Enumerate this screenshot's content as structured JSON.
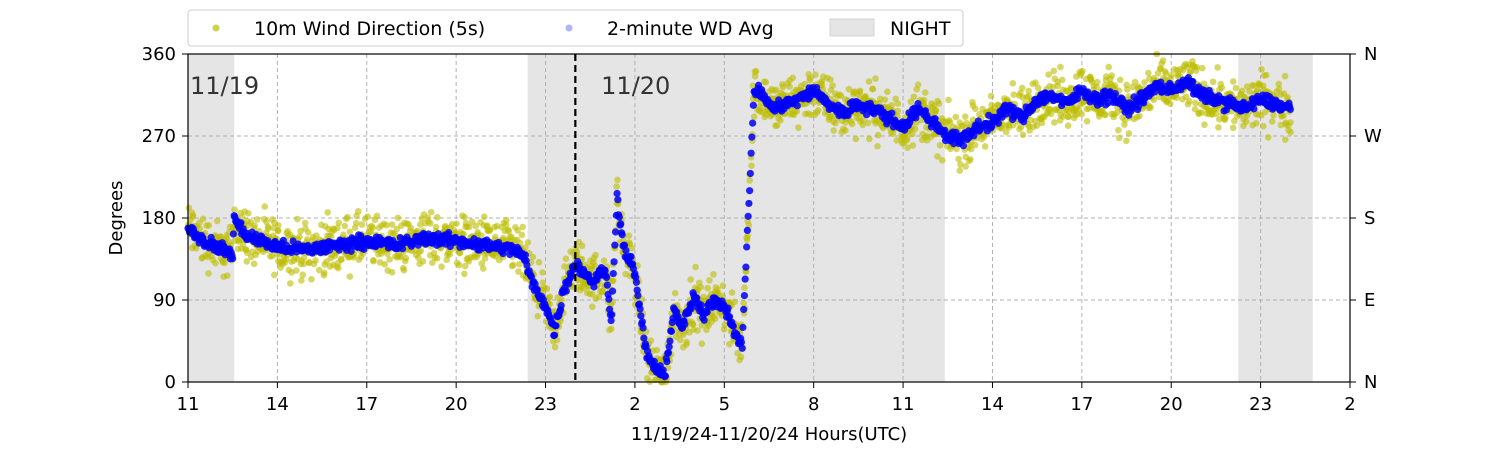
{
  "chart_data": {
    "type": "scatter",
    "title": "",
    "xlabel": "11/19/24-11/20/24  Hours(UTC)",
    "ylabel": "Degrees",
    "xlim": [
      0,
      39
    ],
    "ylim": [
      0,
      360
    ],
    "x_unit": "hours since 11/19/24 11:00 UTC",
    "x_tick_labels": [
      "11",
      "14",
      "17",
      "20",
      "23",
      "2",
      "5",
      "8",
      "11",
      "14",
      "17",
      "20",
      "23",
      "2"
    ],
    "x_ticks": [
      0,
      3,
      6,
      9,
      12,
      15,
      18,
      21,
      24,
      27,
      30,
      33,
      36,
      39
    ],
    "y_ticks": [
      0,
      90,
      180,
      270,
      360
    ],
    "y_tick_labels": [
      "0",
      "90",
      "180",
      "270",
      "360"
    ],
    "y2_ticks": [
      0,
      90,
      180,
      270,
      360
    ],
    "y2_tick_labels": [
      "N",
      "E",
      "S",
      "W",
      "N"
    ],
    "grid": true,
    "legend_placement": "top-left outside",
    "day_labels": [
      {
        "text": "11/19",
        "x": 0
      },
      {
        "text": "11/20",
        "x": 13.8
      }
    ],
    "midnight_line_x": 13,
    "night_periods": [
      [
        0,
        1.55
      ],
      [
        11.4,
        25.4
      ],
      [
        35.25,
        37.75
      ]
    ],
    "legend": {
      "wd5s": "10m Wind Direction (5s)",
      "wd2m": "2-minute WD Avg",
      "night": "NIGHT"
    },
    "colors": {
      "wd5s": "#bdbd00",
      "wd2m": "#0000ff",
      "night": "#e5e5e5",
      "midnight": "#000000",
      "grid": "#b0b0b0"
    },
    "series": [
      {
        "name": "2-minute WD Avg",
        "color": "#0000ff",
        "x": [
          0,
          0.5,
          1,
          1.5,
          1.55,
          1.6,
          2,
          3,
          4,
          5,
          6,
          7,
          8,
          9,
          10,
          11,
          11.3,
          11.6,
          12,
          12.3,
          12.6,
          13,
          13.3,
          13.6,
          14,
          14.2,
          14.4,
          14.6,
          14.8,
          15,
          15.2,
          15.4,
          15.7,
          16,
          16.3,
          16.6,
          17,
          17.3,
          17.6,
          18,
          18.3,
          18.6,
          19,
          19.3,
          19.6,
          20,
          20.5,
          21,
          21.5,
          22,
          22.5,
          23,
          23.5,
          24,
          24.5,
          25,
          25.5,
          26,
          26.5,
          27,
          27.5,
          28,
          28.5,
          29,
          29.5,
          30,
          30.5,
          31,
          31.5,
          32,
          32.5,
          33,
          33.5,
          34,
          34.5,
          35,
          35.5,
          36,
          36.5,
          37
        ],
        "y": [
          170,
          155,
          148,
          140,
          185,
          175,
          160,
          148,
          145,
          150,
          155,
          150,
          158,
          155,
          150,
          145,
          135,
          105,
          85,
          55,
          100,
          130,
          120,
          110,
          125,
          65,
          205,
          150,
          135,
          120,
          70,
          30,
          15,
          5,
          80,
          60,
          95,
          70,
          90,
          85,
          60,
          40,
          320,
          315,
          300,
          305,
          310,
          320,
          305,
          295,
          305,
          300,
          290,
          280,
          300,
          285,
          270,
          265,
          280,
          285,
          300,
          290,
          310,
          315,
          305,
          320,
          310,
          315,
          300,
          310,
          325,
          320,
          330,
          315,
          310,
          305,
          300,
          310,
          305,
          300
        ]
      },
      {
        "name": "10m Wind Direction (5s)",
        "color": "#bdbd00",
        "x": [
          0,
          0.5,
          1,
          1.5,
          1.55,
          1.6,
          2,
          3,
          4,
          5,
          6,
          7,
          8,
          9,
          10,
          11,
          11.3,
          11.6,
          12,
          12.3,
          12.6,
          13,
          13.3,
          13.6,
          14,
          14.2,
          14.4,
          14.6,
          14.8,
          15,
          15.2,
          15.4,
          15.7,
          16,
          16.3,
          16.6,
          17,
          17.3,
          17.6,
          18,
          18.3,
          18.6,
          19,
          19.3,
          19.6,
          20,
          20.5,
          21,
          21.5,
          22,
          22.5,
          23,
          23.5,
          24,
          24.5,
          25,
          25.5,
          26,
          26.5,
          27,
          27.5,
          28,
          28.5,
          29,
          29.5,
          30,
          30.5,
          31,
          31.5,
          32,
          32.5,
          33,
          33.5,
          34,
          34.5,
          35,
          35.5,
          36,
          36.5,
          37
        ],
        "y": [
          170,
          155,
          148,
          140,
          185,
          175,
          160,
          148,
          145,
          150,
          155,
          150,
          158,
          155,
          150,
          145,
          135,
          105,
          85,
          55,
          100,
          130,
          120,
          110,
          125,
          65,
          205,
          150,
          135,
          120,
          70,
          30,
          15,
          5,
          80,
          60,
          95,
          70,
          90,
          85,
          60,
          40,
          320,
          315,
          300,
          305,
          310,
          320,
          305,
          295,
          305,
          300,
          290,
          280,
          300,
          285,
          270,
          265,
          280,
          285,
          300,
          290,
          310,
          315,
          305,
          320,
          310,
          315,
          300,
          310,
          325,
          320,
          330,
          315,
          310,
          305,
          300,
          310,
          305,
          300
        ],
        "spread": 25
      }
    ]
  }
}
